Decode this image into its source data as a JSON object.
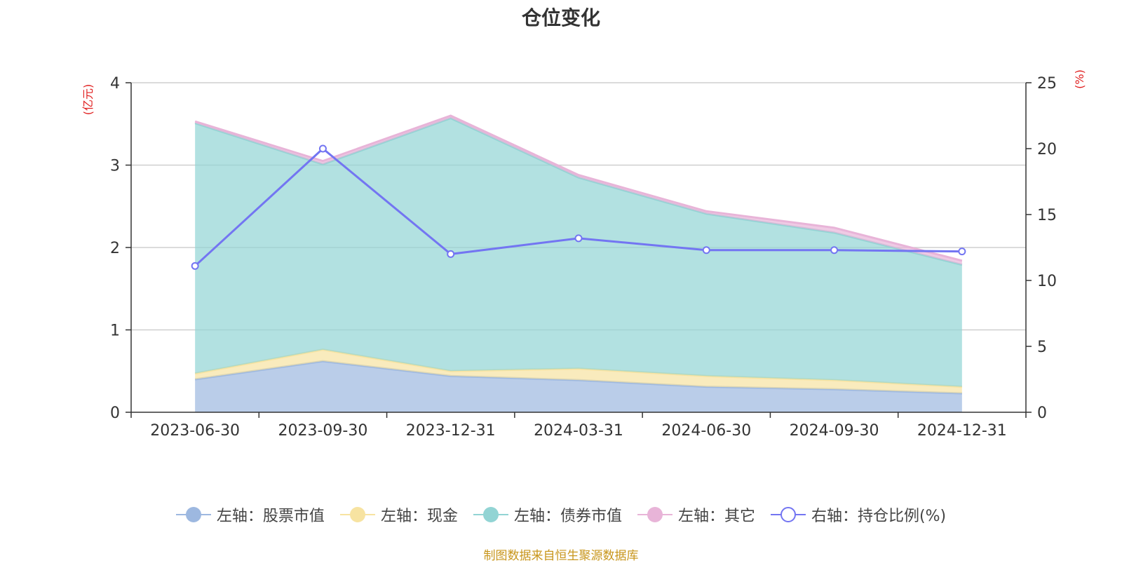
{
  "chart_data": {
    "type": "area",
    "title": "仓位变化",
    "left_unit": "(亿元)",
    "right_unit": "(%)",
    "categories": [
      "2023-06-30",
      "2023-09-30",
      "2023-12-31",
      "2024-03-31",
      "2024-06-30",
      "2024-09-30",
      "2024-12-31"
    ],
    "left_axis": {
      "min": 0,
      "max": 4,
      "ticks": [
        "0",
        "1",
        "2",
        "3",
        "4"
      ]
    },
    "right_axis": {
      "min": 0,
      "max": 25,
      "ticks": [
        "0",
        "5",
        "10",
        "15",
        "20",
        "25"
      ]
    },
    "stacked_series": [
      {
        "name": "左轴：股票市值",
        "color": "#9db8e0",
        "values": [
          0.4,
          0.62,
          0.44,
          0.39,
          0.31,
          0.28,
          0.23
        ]
      },
      {
        "name": "左轴：现金",
        "color": "#f7e3a1",
        "values": [
          0.07,
          0.14,
          0.06,
          0.14,
          0.13,
          0.11,
          0.08
        ]
      },
      {
        "name": "左轴：债券市值",
        "color": "#92d4d4",
        "values": [
          3.04,
          2.25,
          3.07,
          2.32,
          1.97,
          1.79,
          1.48
        ]
      },
      {
        "name": "左轴：其它",
        "color": "#e8b4d8",
        "values": [
          0.02,
          0.04,
          0.03,
          0.03,
          0.03,
          0.06,
          0.05
        ]
      }
    ],
    "line_series": {
      "name": "右轴：持仓比例(%)",
      "color": "#7375f2",
      "values": [
        11.1,
        20.0,
        12.0,
        13.2,
        12.3,
        12.3,
        12.2
      ]
    },
    "grid": true,
    "legend_position": "bottom"
  },
  "footer": {
    "source": "制图数据来自恒生聚源数据库"
  }
}
